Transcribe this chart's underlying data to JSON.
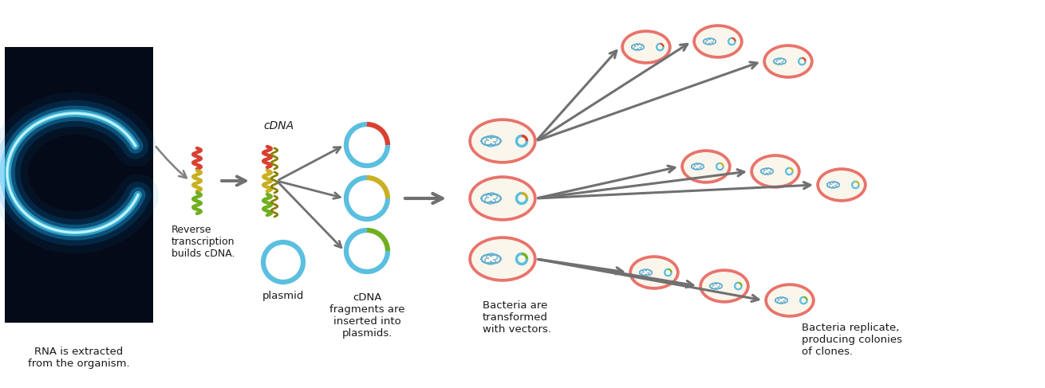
{
  "bg_color": "#ffffff",
  "text_color": "#1a1a1a",
  "salmon_color": "#e8736b",
  "light_beige": "#faf6ec",
  "sky_blue": "#5bbfdf",
  "red_insert": "#d94030",
  "yellow_insert": "#c8b020",
  "green_insert": "#70b020",
  "arrow_color": "#707070",
  "dna_blue": "#5aaad0",
  "worm_bg": "#050a18",
  "labels": {
    "rna_extracted": "RNA is extracted\nfrom the organism.",
    "reverse_transcription": "Reverse\ntranscription\nbuilds cDNA.",
    "cdna": "cDNA",
    "plasmid": "plasmid",
    "cdna_fragments": "cDNA\nfragments are\ninserted into\nplasmids.",
    "bacteria_transformed": "Bacteria are\ntransformed\nwith vectors.",
    "bacteria_replicate": "Bacteria replicate,\nproducing colonies\nof clones."
  },
  "figsize": [
    13.1,
    4.87
  ],
  "dpi": 100
}
